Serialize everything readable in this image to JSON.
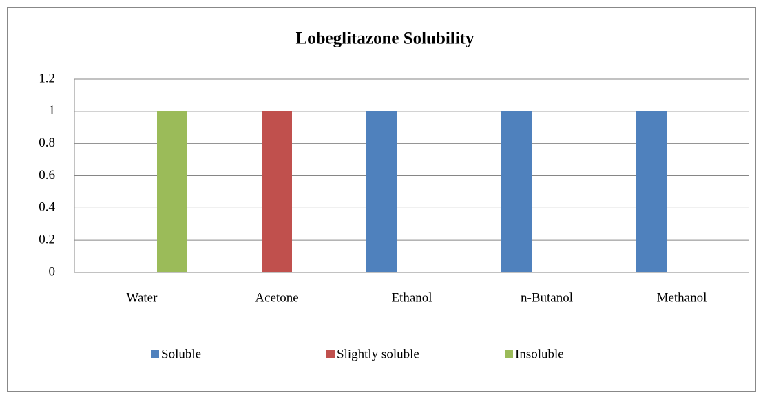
{
  "chart_data": {
    "type": "bar",
    "title": "Lobeglitazone Solubility",
    "categories": [
      "Water",
      "Acetone",
      "Ethanol",
      "n-Butanol",
      "Methanol"
    ],
    "series": [
      {
        "name": "Soluble",
        "color": "#4f81bd",
        "values": [
          null,
          null,
          1,
          1,
          1
        ]
      },
      {
        "name": "Slightly soluble",
        "color": "#c0504d",
        "values": [
          null,
          1,
          null,
          null,
          null
        ]
      },
      {
        "name": "Insoluble",
        "color": "#9bbb59",
        "values": [
          1,
          null,
          null,
          null,
          null
        ]
      }
    ],
    "ylim": [
      0,
      1.2
    ],
    "yticks": [
      0,
      0.2,
      0.4,
      0.6,
      0.8,
      1,
      1.2
    ],
    "grid": true,
    "legend": "bottom"
  }
}
